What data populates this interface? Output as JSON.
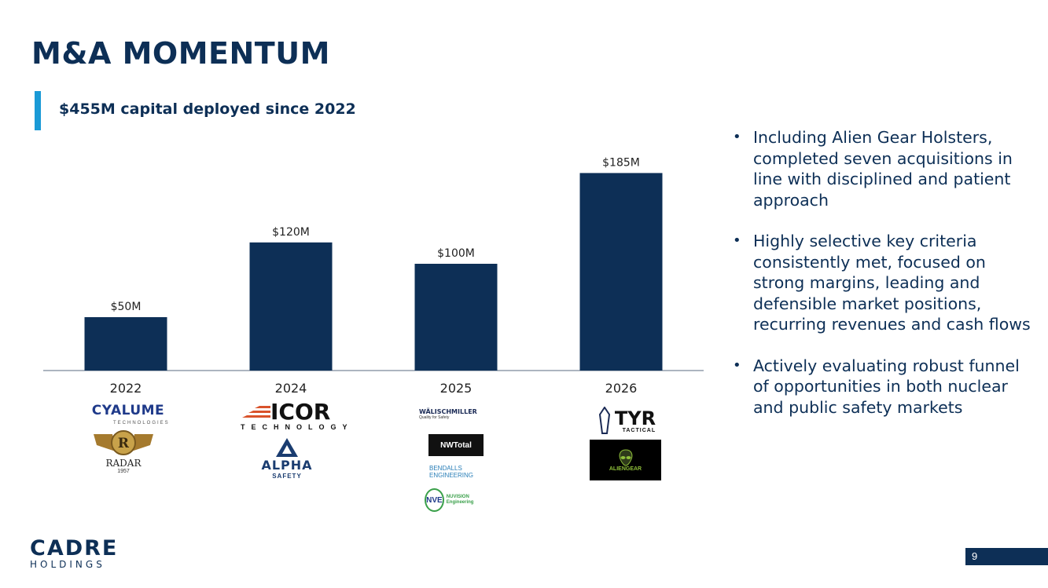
{
  "slide": {
    "title": "M&A MOMENTUM",
    "subtitle": "$455M capital deployed since 2022",
    "page_number": "9"
  },
  "chart_data": {
    "type": "bar",
    "categories": [
      "2022",
      "2024",
      "2025",
      "2026"
    ],
    "values": [
      50,
      120,
      100,
      185
    ],
    "data_labels": [
      "$50M",
      "$120M",
      "$100M",
      "$185M"
    ],
    "title": "",
    "xlabel": "",
    "ylabel": "",
    "ylim": [
      0,
      200
    ],
    "grid": false,
    "bar_color": "#0d2f56"
  },
  "bullets": [
    "Including Alien Gear Holsters, completed seven acquisitions in line with disciplined and patient approach",
    "Highly selective key criteria consistently met, focused on strong margins, leading and defensible market positions, recurring revenues and cash flows",
    "Actively evaluating robust funnel of opportunities in both nuclear and public safety markets"
  ],
  "logos": {
    "cyalume": "CYALUME",
    "cyalume_sub": "TECHNOLOGIES",
    "radar": "RADAR",
    "radar_year": "1957",
    "icor": "ICOR",
    "icor_sub": "TECHNOLOGY",
    "alpha": "ALPHA",
    "alpha_sub": "SAFETY",
    "walischmiller": "WÄLISCHMILLER",
    "walischmiller_sub": "Quality for Safety",
    "nwtotal": "NWTotal",
    "bendalls": "BENDALLS ENGINEERING",
    "nve": "NVE",
    "nve_sub": "NUVISION Engineering",
    "tyr": "TYR",
    "tyr_sub": "TACTICAL",
    "aliengear": "ALIENGEAR"
  },
  "brand": {
    "name": "CADRE",
    "sub": "HOLDINGS"
  },
  "colors": {
    "navy": "#0d2f56",
    "accent": "#1a9ad6"
  }
}
